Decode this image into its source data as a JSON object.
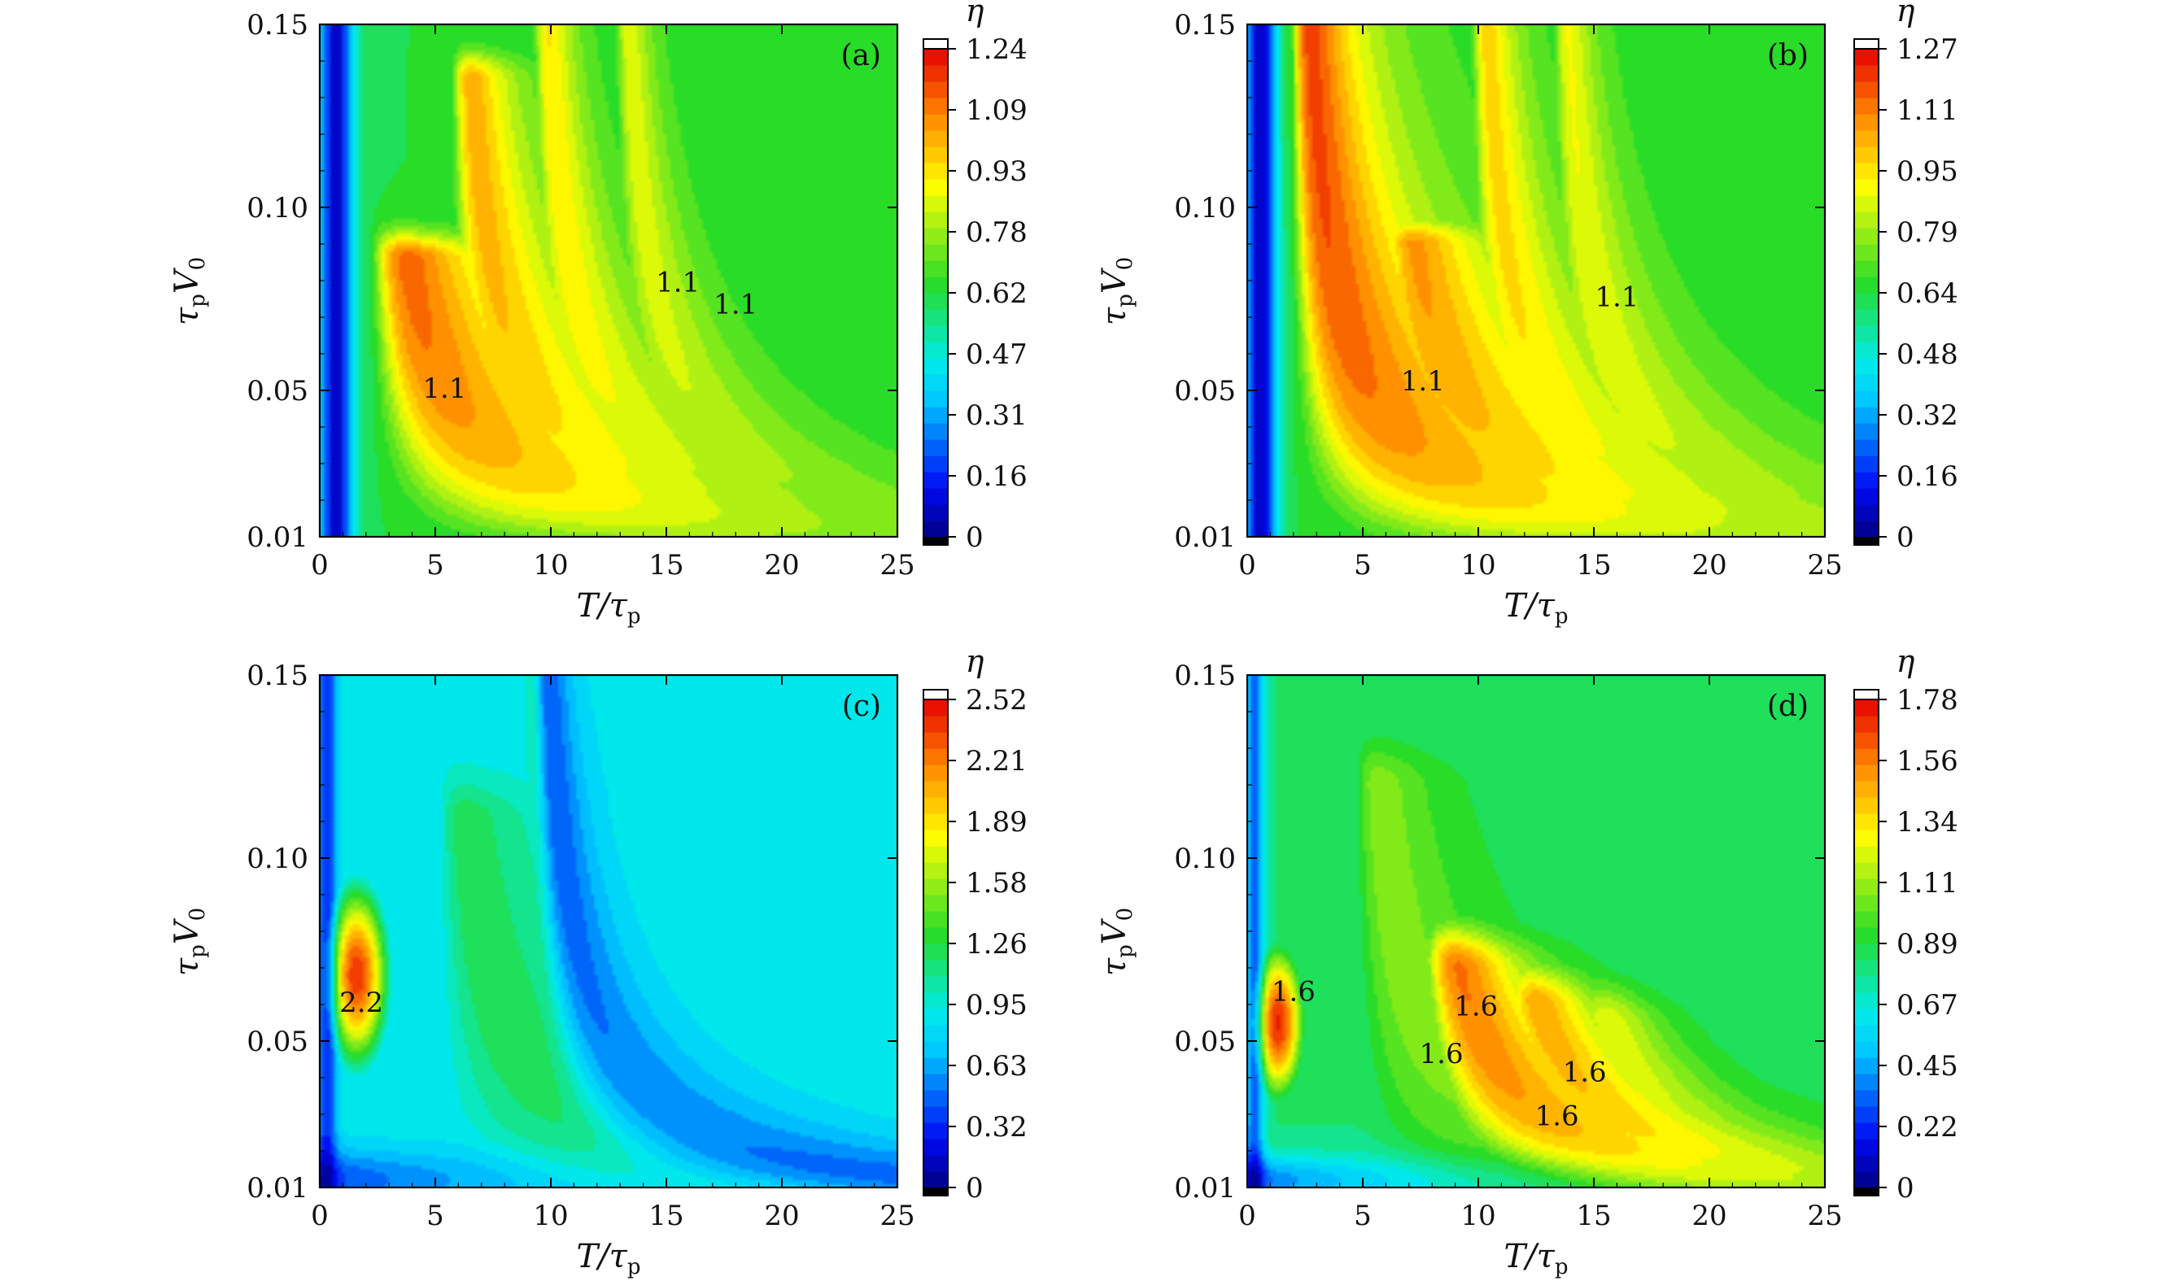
{
  "chart_data": [
    {
      "type": "heatmap",
      "panel_label": "(a)",
      "xlabel_var": "T/τ",
      "xlabel_sub": "p",
      "ylabel_var": "τ",
      "ylabel_sub": "p",
      "ylabel_var2": "V",
      "ylabel_sub2": "0",
      "xlim": [
        0,
        25
      ],
      "ylim": [
        0.01,
        0.15
      ],
      "x_ticks": [
        "0",
        "5",
        "10",
        "15",
        "20",
        "25"
      ],
      "y_ticks": [
        "0.01",
        "0.05",
        "0.10",
        "0.15"
      ],
      "colorbar_label": "η",
      "colorbar_ticks": [
        "1.24",
        "1.09",
        "0.93",
        "0.78",
        "0.62",
        "0.47",
        "0.31",
        "0.16",
        "0"
      ],
      "zmax": 1.24,
      "contour_labels": [
        "1.1",
        "1.1",
        "1.1"
      ],
      "field": {
        "background": 0.62,
        "ridge_decay": 0.065,
        "ridges": [
          {
            "a": 1.18,
            "w": 0.7,
            "x0": 2.0,
            "k": 0.15,
            "p": 0.8,
            "tip_cv": 0.086,
            "tip_w": 0.0025
          },
          {
            "a": 1.05,
            "w": 0.6,
            "x0": 5.5,
            "k": 0.15,
            "p": 0.8,
            "tip_cv": 0.135,
            "tip_w": 0.0025
          },
          {
            "a": 0.95,
            "w": 0.5,
            "x0": 9.0,
            "k": 0.14,
            "p": 0.8,
            "tip_cv": 0.15,
            "tip_w": 0.003
          },
          {
            "a": 0.88,
            "w": 0.45,
            "x0": 12.5,
            "k": 0.14,
            "p": 0.8,
            "tip_cv": 0.15,
            "tip_w": 0.003
          }
        ],
        "wall": {
          "x": 0.7,
          "w": 0.55,
          "depth": 0.55
        }
      }
    },
    {
      "type": "heatmap",
      "panel_label": "(b)",
      "xlabel_var": "T/τ",
      "xlabel_sub": "p",
      "ylabel_var": "τ",
      "ylabel_sub": "p",
      "ylabel_var2": "V",
      "ylabel_sub2": "0",
      "xlim": [
        0,
        25
      ],
      "ylim": [
        0.01,
        0.15
      ],
      "x_ticks": [
        "0",
        "5",
        "10",
        "15",
        "20",
        "25"
      ],
      "y_ticks": [
        "0.01",
        "0.05",
        "0.10",
        "0.15"
      ],
      "colorbar_label": "η",
      "colorbar_ticks": [
        "1.27",
        "1.11",
        "0.95",
        "0.79",
        "0.64",
        "0.48",
        "0.32",
        "0.16",
        "0"
      ],
      "zmax": 1.27,
      "contour_labels": [
        "1.1",
        "1.1"
      ],
      "field": {
        "background": 0.64,
        "ridge_decay": 0.055,
        "ridges": [
          {
            "a": 1.22,
            "w": 0.75,
            "x0": 1.8,
            "k": 0.15,
            "p": 0.8,
            "tip_cv": 0.15,
            "tip_w": 0.003
          },
          {
            "a": 1.12,
            "w": 0.65,
            "x0": 5.5,
            "k": 0.15,
            "p": 0.8,
            "tip_cv": 0.09,
            "tip_w": 0.0025
          },
          {
            "a": 1.0,
            "w": 0.55,
            "x0": 9.5,
            "k": 0.14,
            "p": 0.8,
            "tip_cv": 0.15,
            "tip_w": 0.003
          },
          {
            "a": 0.92,
            "w": 0.5,
            "x0": 13.0,
            "k": 0.14,
            "p": 0.8,
            "tip_cv": 0.15,
            "tip_w": 0.003
          }
        ],
        "wall": {
          "x": 0.6,
          "w": 0.5,
          "depth": 0.6
        }
      }
    },
    {
      "type": "heatmap",
      "panel_label": "(c)",
      "xlabel_var": "T/τ",
      "xlabel_sub": "p",
      "ylabel_var": "τ",
      "ylabel_sub": "p",
      "ylabel_var2": "V",
      "ylabel_sub2": "0",
      "xlim": [
        0,
        25
      ],
      "ylim": [
        0.01,
        0.15
      ],
      "x_ticks": [
        "0",
        "5",
        "10",
        "15",
        "20",
        "25"
      ],
      "y_ticks": [
        "0.01",
        "0.05",
        "0.10",
        "0.15"
      ],
      "colorbar_label": "η",
      "colorbar_ticks": [
        "2.52",
        "2.21",
        "1.89",
        "1.58",
        "1.26",
        "0.95",
        "0.63",
        "0.32",
        "0"
      ],
      "zmax": 2.52,
      "contour_labels": [
        "2.2"
      ],
      "field": {
        "background": 0.9,
        "ridge_decay": 0.04,
        "blob": {
          "a": 2.4,
          "x": 1.6,
          "cv": 0.068,
          "wx": 1.1,
          "wv": 0.02
        },
        "ridges": [
          {
            "a": 1.25,
            "w": 0.7,
            "x0": 5.0,
            "k": 0.15,
            "p": 0.85,
            "tip_cv": 0.11,
            "tip_w": 0.004
          },
          {
            "a": 1.0,
            "w": 0.6,
            "x0": 8.5,
            "k": 0.14,
            "p": 0.85,
            "tip_cv": 0.15,
            "tip_w": 0.004
          },
          {
            "a": 0.85,
            "w": 0.5,
            "x0": 12.0,
            "k": 0.14,
            "p": 0.85,
            "tip_cv": 0.15,
            "tip_w": 0.004
          }
        ],
        "dip": {
          "a": 0.55,
          "x0": 9.0,
          "w": 0.45
        },
        "floor": {
          "a": 0.55,
          "cv": 0.012,
          "w": 0.006
        },
        "wall": {
          "x": 0.3,
          "w": 0.3,
          "depth": 0.4
        }
      }
    },
    {
      "type": "heatmap",
      "panel_label": "(d)",
      "xlabel_var": "T/τ",
      "xlabel_sub": "p",
      "ylabel_var": "τ",
      "ylabel_sub": "p",
      "ylabel_var2": "V",
      "ylabel_sub2": "0",
      "xlim": [
        0,
        25
      ],
      "ylim": [
        0.01,
        0.15
      ],
      "x_ticks": [
        "0",
        "5",
        "10",
        "15",
        "20",
        "25"
      ],
      "y_ticks": [
        "0.01",
        "0.05",
        "0.10",
        "0.15"
      ],
      "colorbar_label": "η",
      "colorbar_ticks": [
        "1.78",
        "1.56",
        "1.34",
        "1.11",
        "0.89",
        "0.67",
        "0.45",
        "0.22",
        "0"
      ],
      "zmax": 1.78,
      "contour_labels": [
        "1.6",
        "1.6",
        "1.6",
        "1.6",
        "1.6"
      ],
      "field": {
        "background": 0.82,
        "ridge_decay": 0.045,
        "blob": {
          "a": 1.72,
          "x": 1.3,
          "cv": 0.055,
          "wx": 1.0,
          "wv": 0.018
        },
        "ridges": [
          {
            "a": 1.1,
            "w": 0.75,
            "x0": 4.5,
            "k": 0.15,
            "p": 0.85,
            "tip_cv": 0.12,
            "tip_w": 0.004
          },
          {
            "a": 1.65,
            "w": 0.55,
            "x0": 7.0,
            "k": 0.14,
            "p": 0.85,
            "tip_cv": 0.07,
            "tip_w": 0.004
          },
          {
            "a": 1.55,
            "w": 0.45,
            "x0": 10.0,
            "k": 0.14,
            "p": 0.85,
            "tip_cv": 0.06,
            "tip_w": 0.004
          },
          {
            "a": 1.3,
            "w": 0.4,
            "x0": 13.0,
            "k": 0.13,
            "p": 0.85,
            "tip_cv": 0.055,
            "tip_w": 0.004
          }
        ],
        "floor": {
          "a": 0.5,
          "cv": 0.012,
          "w": 0.005
        },
        "wall": {
          "x": 0.3,
          "w": 0.3,
          "depth": 0.35
        }
      }
    }
  ]
}
